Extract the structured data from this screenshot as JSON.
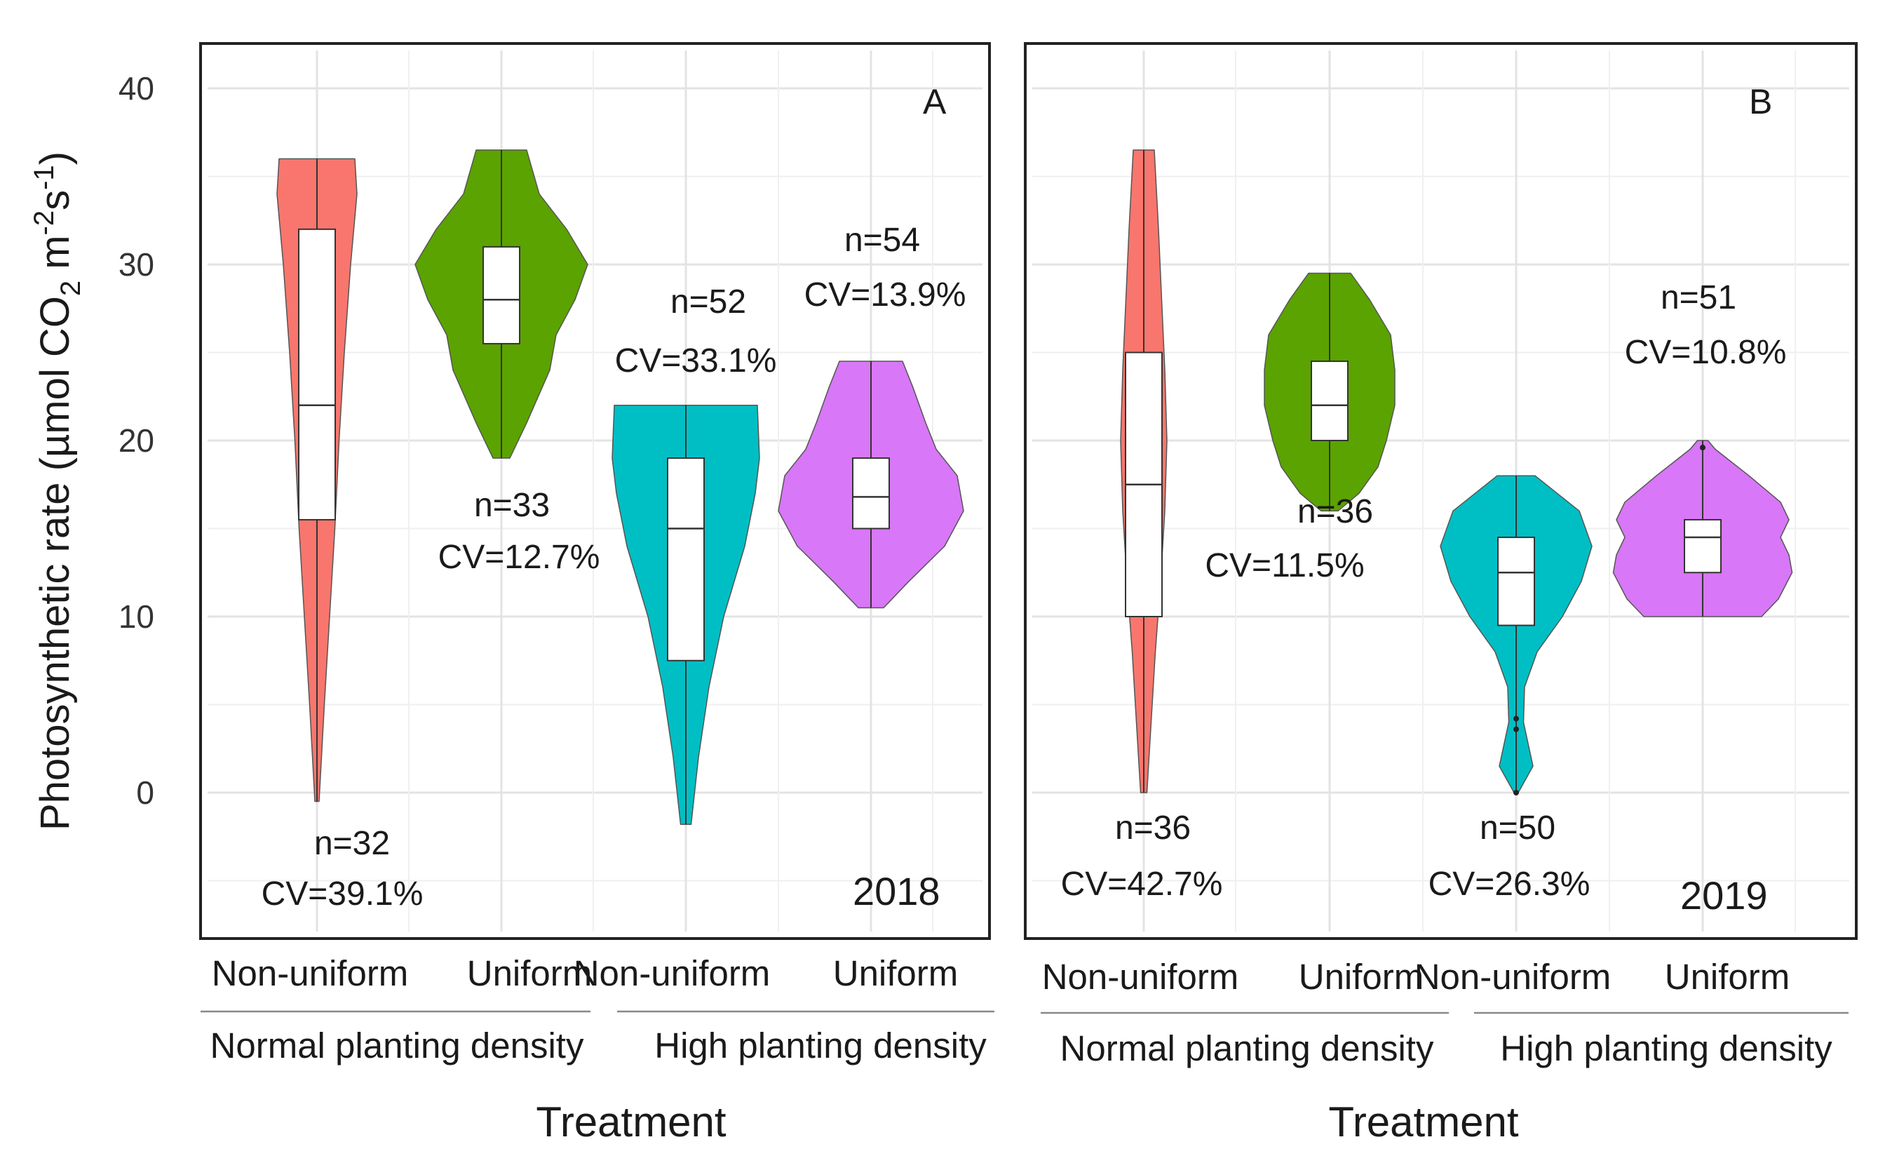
{
  "figure": {
    "y_axis_title": "Photosynthetic rate (µmol CO2 m-2s-1)",
    "y_axis_title_parts": {
      "main": "Photosynthetic rate (µmol CO",
      "sub": "2",
      "unit1": " m",
      "sup1": "-2",
      "unit2": "s",
      "sup2": "-1",
      "close": ")"
    },
    "x_axis_title": "Treatment"
  },
  "chart_data": [
    {
      "type": "violin",
      "panel": "A",
      "year": "2018",
      "ylim": [
        -6.5,
        42
      ],
      "yticks": [
        0,
        10,
        20,
        30,
        40
      ],
      "y_tick_labels": [
        "0",
        "10",
        "20",
        "30",
        "40"
      ],
      "grid": true,
      "categories": [
        "Non-uniform",
        "Uniform",
        "Non-uniform",
        "Uniform"
      ],
      "groups": [
        {
          "label": "Normal planting density",
          "categories": [
            0,
            1
          ]
        },
        {
          "label": "High planting density",
          "categories": [
            2,
            3
          ]
        }
      ],
      "series": [
        {
          "name": "Normal planting density - Non-uniform",
          "color": "#F8766D",
          "n": "n=32",
          "cv": "CV=39.1%",
          "label_position": "below",
          "min": -0.5,
          "max": 36,
          "q1": 15.5,
          "median": 22,
          "q3": 32,
          "density": [
            [
              -0.5,
              0.02
            ],
            [
              5,
              0.07
            ],
            [
              10,
              0.12
            ],
            [
              15,
              0.17
            ],
            [
              20,
              0.21
            ],
            [
              25,
              0.26
            ],
            [
              30,
              0.32
            ],
            [
              34,
              0.38
            ],
            [
              36,
              0.36
            ]
          ]
        },
        {
          "name": "Normal planting density - Uniform",
          "color": "#5BA300",
          "n": "n=33",
          "cv": "CV=12.7%",
          "label_position": "below",
          "min": 19,
          "max": 36.5,
          "q1": 25.5,
          "median": 28,
          "q3": 31,
          "density": [
            [
              19,
              0.08
            ],
            [
              21,
              0.24
            ],
            [
              24,
              0.46
            ],
            [
              26,
              0.52
            ],
            [
              28,
              0.7
            ],
            [
              30,
              0.82
            ],
            [
              32,
              0.62
            ],
            [
              34,
              0.36
            ],
            [
              36.5,
              0.24
            ]
          ]
        },
        {
          "name": "High planting density - Non-uniform",
          "color": "#00BFC4",
          "n": "n=52",
          "cv": "CV=33.1%",
          "label_position": "above",
          "min": -1.8,
          "max": 22,
          "q1": 7.5,
          "median": 15,
          "q3": 19,
          "density": [
            [
              -1.8,
              0.05
            ],
            [
              2,
              0.12
            ],
            [
              6,
              0.22
            ],
            [
              10,
              0.36
            ],
            [
              14,
              0.56
            ],
            [
              17,
              0.66
            ],
            [
              19,
              0.7
            ],
            [
              22,
              0.68
            ]
          ]
        },
        {
          "name": "High planting density - Uniform",
          "color": "#D877F7",
          "n": "n=54",
          "cv": "CV=13.9%",
          "label_position": "above",
          "min": 10.5,
          "max": 24.5,
          "q1": 15,
          "median": 16.8,
          "q3": 19,
          "density": [
            [
              10.5,
              0.12
            ],
            [
              12,
              0.36
            ],
            [
              14,
              0.7
            ],
            [
              16,
              0.88
            ],
            [
              18,
              0.82
            ],
            [
              19.5,
              0.62
            ],
            [
              21,
              0.52
            ],
            [
              23,
              0.4
            ],
            [
              24.5,
              0.3
            ]
          ]
        }
      ]
    },
    {
      "type": "violin",
      "panel": "B",
      "year": "2019",
      "ylim": [
        -6.5,
        42
      ],
      "yticks": [
        0,
        10,
        20,
        30,
        40
      ],
      "grid": true,
      "categories": [
        "Non-uniform",
        "Uniform",
        "Non-uniform",
        "Uniform"
      ],
      "groups": [
        {
          "label": "Normal planting density",
          "categories": [
            0,
            1
          ]
        },
        {
          "label": "High planting density",
          "categories": [
            2,
            3
          ]
        }
      ],
      "series": [
        {
          "name": "Normal planting density - Non-uniform",
          "color": "#F8766D",
          "n": "n=36",
          "cv": "CV=42.7%",
          "label_position": "below",
          "min": 0,
          "max": 36.5,
          "q1": 10,
          "median": 17.5,
          "q3": 25,
          "density": [
            [
              0,
              0.03
            ],
            [
              4,
              0.07
            ],
            [
              8,
              0.11
            ],
            [
              12,
              0.16
            ],
            [
              16,
              0.2
            ],
            [
              20,
              0.22
            ],
            [
              24,
              0.2
            ],
            [
              28,
              0.17
            ],
            [
              32,
              0.14
            ],
            [
              36.5,
              0.1
            ]
          ]
        },
        {
          "name": "Normal planting density - Uniform",
          "color": "#5BA300",
          "n": "n=36",
          "cv": "CV=11.5%",
          "label_position": "below",
          "min": 16,
          "max": 29.5,
          "q1": 20,
          "median": 22,
          "q3": 24.5,
          "density": [
            [
              16,
              0.08
            ],
            [
              17,
              0.28
            ],
            [
              18.5,
              0.46
            ],
            [
              20,
              0.54
            ],
            [
              22,
              0.62
            ],
            [
              24,
              0.62
            ],
            [
              26,
              0.58
            ],
            [
              28,
              0.38
            ],
            [
              29.5,
              0.2
            ]
          ]
        },
        {
          "name": "High planting density - Non-uniform",
          "color": "#00BFC4",
          "n": "n=50",
          "cv": "CV=26.3%",
          "label_position": "below",
          "min": 0,
          "max": 18,
          "q1": 9.5,
          "median": 12.5,
          "q3": 14.5,
          "density": [
            [
              0,
              0.02
            ],
            [
              1.5,
              0.16
            ],
            [
              4,
              0.07
            ],
            [
              6,
              0.08
            ],
            [
              8,
              0.2
            ],
            [
              10,
              0.44
            ],
            [
              12,
              0.62
            ],
            [
              14,
              0.72
            ],
            [
              16,
              0.6
            ],
            [
              18,
              0.18
            ]
          ]
        },
        {
          "name": "High planting density - Uniform",
          "color": "#D877F7",
          "n": "n=51",
          "cv": "CV=10.8%",
          "label_position": "above",
          "min": 10,
          "max": 20,
          "q1": 12.5,
          "median": 14.5,
          "q3": 15.5,
          "density": [
            [
              10,
              0.56
            ],
            [
              11,
              0.72
            ],
            [
              12.5,
              0.85
            ],
            [
              13.5,
              0.82
            ],
            [
              14.5,
              0.74
            ],
            [
              15.5,
              0.82
            ],
            [
              16.5,
              0.74
            ],
            [
              18,
              0.44
            ],
            [
              19.5,
              0.12
            ],
            [
              20,
              0.05
            ]
          ]
        }
      ]
    }
  ]
}
